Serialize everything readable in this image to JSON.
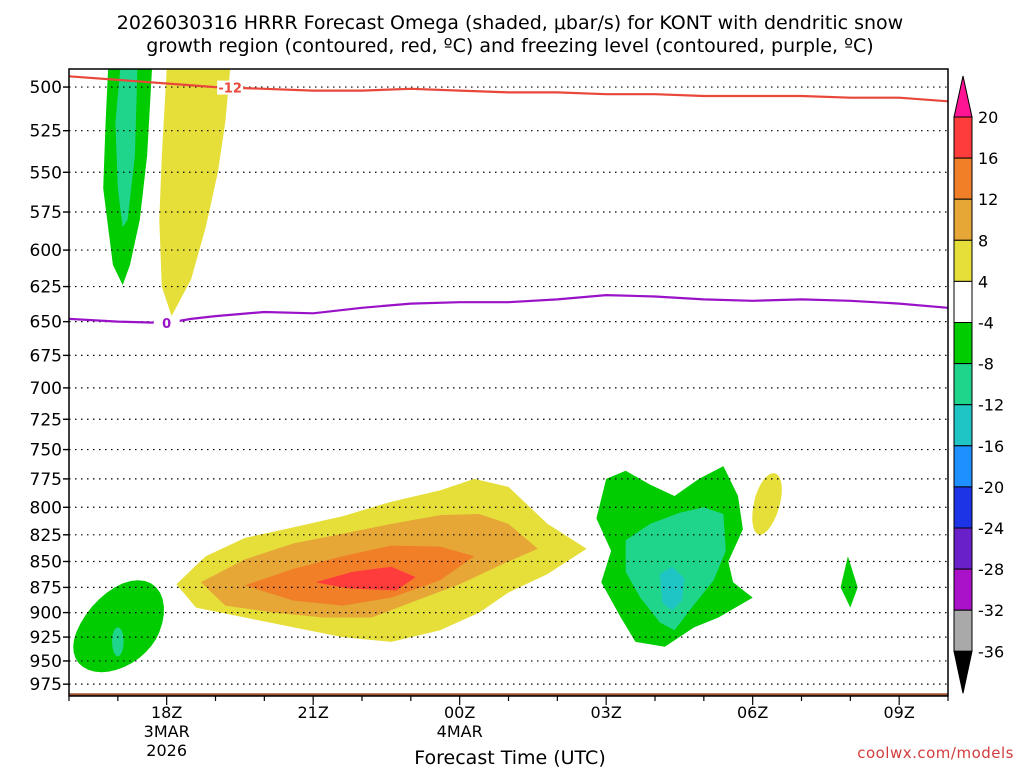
{
  "chart_data": {
    "type": "heatmap",
    "title_line1": "2026030316 HRRR Forecast Omega (shaded, μbar/s) for KONT with dendritic snow",
    "title_line2": "growth region (contoured, red, ºC) and freezing level (contoured, purple, ºC)",
    "xlabel": "Forecast Time (UTC)",
    "credit": "coolwx.com/models",
    "x_axis": {
      "unit": "hours after 2026-03-03 16Z",
      "range": [
        16,
        34
      ],
      "ticks": [
        {
          "label": "18Z",
          "sub1": "3MAR",
          "sub2": "2026",
          "value": 18
        },
        {
          "label": "21Z",
          "sub1": "",
          "sub2": "",
          "value": 21
        },
        {
          "label": "00Z",
          "sub1": "4MAR",
          "sub2": "",
          "value": 24
        },
        {
          "label": "03Z",
          "sub1": "",
          "sub2": "",
          "value": 27
        },
        {
          "label": "06Z",
          "sub1": "",
          "sub2": "",
          "value": 30
        },
        {
          "label": "09Z",
          "sub1": "",
          "sub2": "",
          "value": 33
        }
      ]
    },
    "y_axis": {
      "unit": "hPa",
      "scale": "log",
      "range": [
        490,
        988
      ],
      "ticks": [
        "500",
        "525",
        "550",
        "575",
        "600",
        "625",
        "650",
        "675",
        "700",
        "725",
        "750",
        "775",
        "800",
        "825",
        "850",
        "875",
        "900",
        "925",
        "950",
        "975"
      ]
    },
    "colorbar": {
      "labels": [
        "20",
        "16",
        "12",
        "8",
        "4",
        "-4",
        "-8",
        "-12",
        "-16",
        "-20",
        "-24",
        "-28",
        "-32",
        "-36"
      ],
      "colors": [
        "#ff1493",
        "#ff3c3c",
        "#f07f28",
        "#e6a736",
        "#e6df3a",
        "#ffffff",
        "#00cc00",
        "#1fd58c",
        "#1fc4c4",
        "#1e90ff",
        "#1c34e6",
        "#6a20c8",
        "#a912c8",
        "#a9a9a9",
        "#000000"
      ]
    },
    "omega_colors": {
      "pos_4_8": "#e6df3a",
      "pos_8_12": "#e6a736",
      "pos_12_16": "#f07f28",
      "pos_16_20": "#ff3c3c",
      "neg_4_8": "#00cc00",
      "neg_8_12": "#1fd58c",
      "neg_12_16": "#1fc4c4"
    },
    "dgz_contour": {
      "label": "-12",
      "color": "#e8473a",
      "points": [
        [
          16.0,
          494
        ],
        [
          17.0,
          496
        ],
        [
          18.0,
          498
        ],
        [
          19.0,
          500
        ],
        [
          20.0,
          501
        ],
        [
          21.0,
          502
        ],
        [
          22.0,
          502
        ],
        [
          23.0,
          501
        ],
        [
          24.0,
          502
        ],
        [
          25.0,
          503
        ],
        [
          26.0,
          503
        ],
        [
          27.0,
          504
        ],
        [
          28.0,
          504
        ],
        [
          29.0,
          505
        ],
        [
          30.0,
          505
        ],
        [
          31.0,
          505
        ],
        [
          32.0,
          506
        ],
        [
          33.0,
          506
        ],
        [
          34.0,
          508
        ]
      ]
    },
    "freezing_contour": {
      "label": "0",
      "color": "#9a12c8",
      "points": [
        [
          16.0,
          648
        ],
        [
          17.0,
          650
        ],
        [
          18.0,
          651
        ],
        [
          18.5,
          648
        ],
        [
          19.0,
          646
        ],
        [
          20.0,
          643
        ],
        [
          21.0,
          644
        ],
        [
          22.0,
          640
        ],
        [
          23.0,
          637
        ],
        [
          24.0,
          636
        ],
        [
          25.0,
          636
        ],
        [
          26.0,
          634
        ],
        [
          27.0,
          631
        ],
        [
          28.0,
          632
        ],
        [
          29.0,
          634
        ],
        [
          30.0,
          635
        ],
        [
          31.0,
          634
        ],
        [
          32.0,
          635
        ],
        [
          33.0,
          637
        ],
        [
          34.0,
          640
        ]
      ]
    },
    "surface_pressure": 985
  }
}
